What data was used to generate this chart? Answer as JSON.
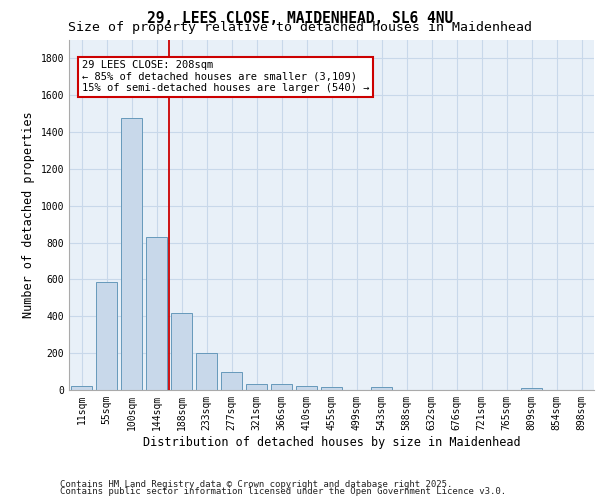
{
  "title_line1": "29, LEES CLOSE, MAIDENHEAD, SL6 4NU",
  "title_line2": "Size of property relative to detached houses in Maidenhead",
  "xlabel": "Distribution of detached houses by size in Maidenhead",
  "ylabel": "Number of detached properties",
  "categories": [
    "11sqm",
    "55sqm",
    "100sqm",
    "144sqm",
    "188sqm",
    "233sqm",
    "277sqm",
    "321sqm",
    "366sqm",
    "410sqm",
    "455sqm",
    "499sqm",
    "543sqm",
    "588sqm",
    "632sqm",
    "676sqm",
    "721sqm",
    "765sqm",
    "809sqm",
    "854sqm",
    "898sqm"
  ],
  "values": [
    20,
    585,
    1475,
    830,
    420,
    200,
    100,
    35,
    35,
    20,
    15,
    0,
    15,
    0,
    0,
    0,
    0,
    0,
    10,
    0,
    0
  ],
  "bar_color": "#c8d8ea",
  "bar_edge_color": "#6699bb",
  "bar_edge_width": 0.7,
  "red_line_x": 3.5,
  "annotation_title": "29 LEES CLOSE: 208sqm",
  "annotation_line1": "← 85% of detached houses are smaller (3,109)",
  "annotation_line2": "15% of semi-detached houses are larger (540) →",
  "annotation_box_color": "#ffffff",
  "annotation_box_edge_color": "#cc0000",
  "ylim": [
    0,
    1900
  ],
  "yticks": [
    0,
    200,
    400,
    600,
    800,
    1000,
    1200,
    1400,
    1600,
    1800
  ],
  "grid_color": "#c8d8ea",
  "background_color": "#e8f0f8",
  "footer_line1": "Contains HM Land Registry data © Crown copyright and database right 2025.",
  "footer_line2": "Contains public sector information licensed under the Open Government Licence v3.0.",
  "title_fontsize": 10.5,
  "subtitle_fontsize": 9.5,
  "axis_label_fontsize": 8.5,
  "tick_fontsize": 7,
  "annotation_fontsize": 7.5,
  "footer_fontsize": 6.5
}
